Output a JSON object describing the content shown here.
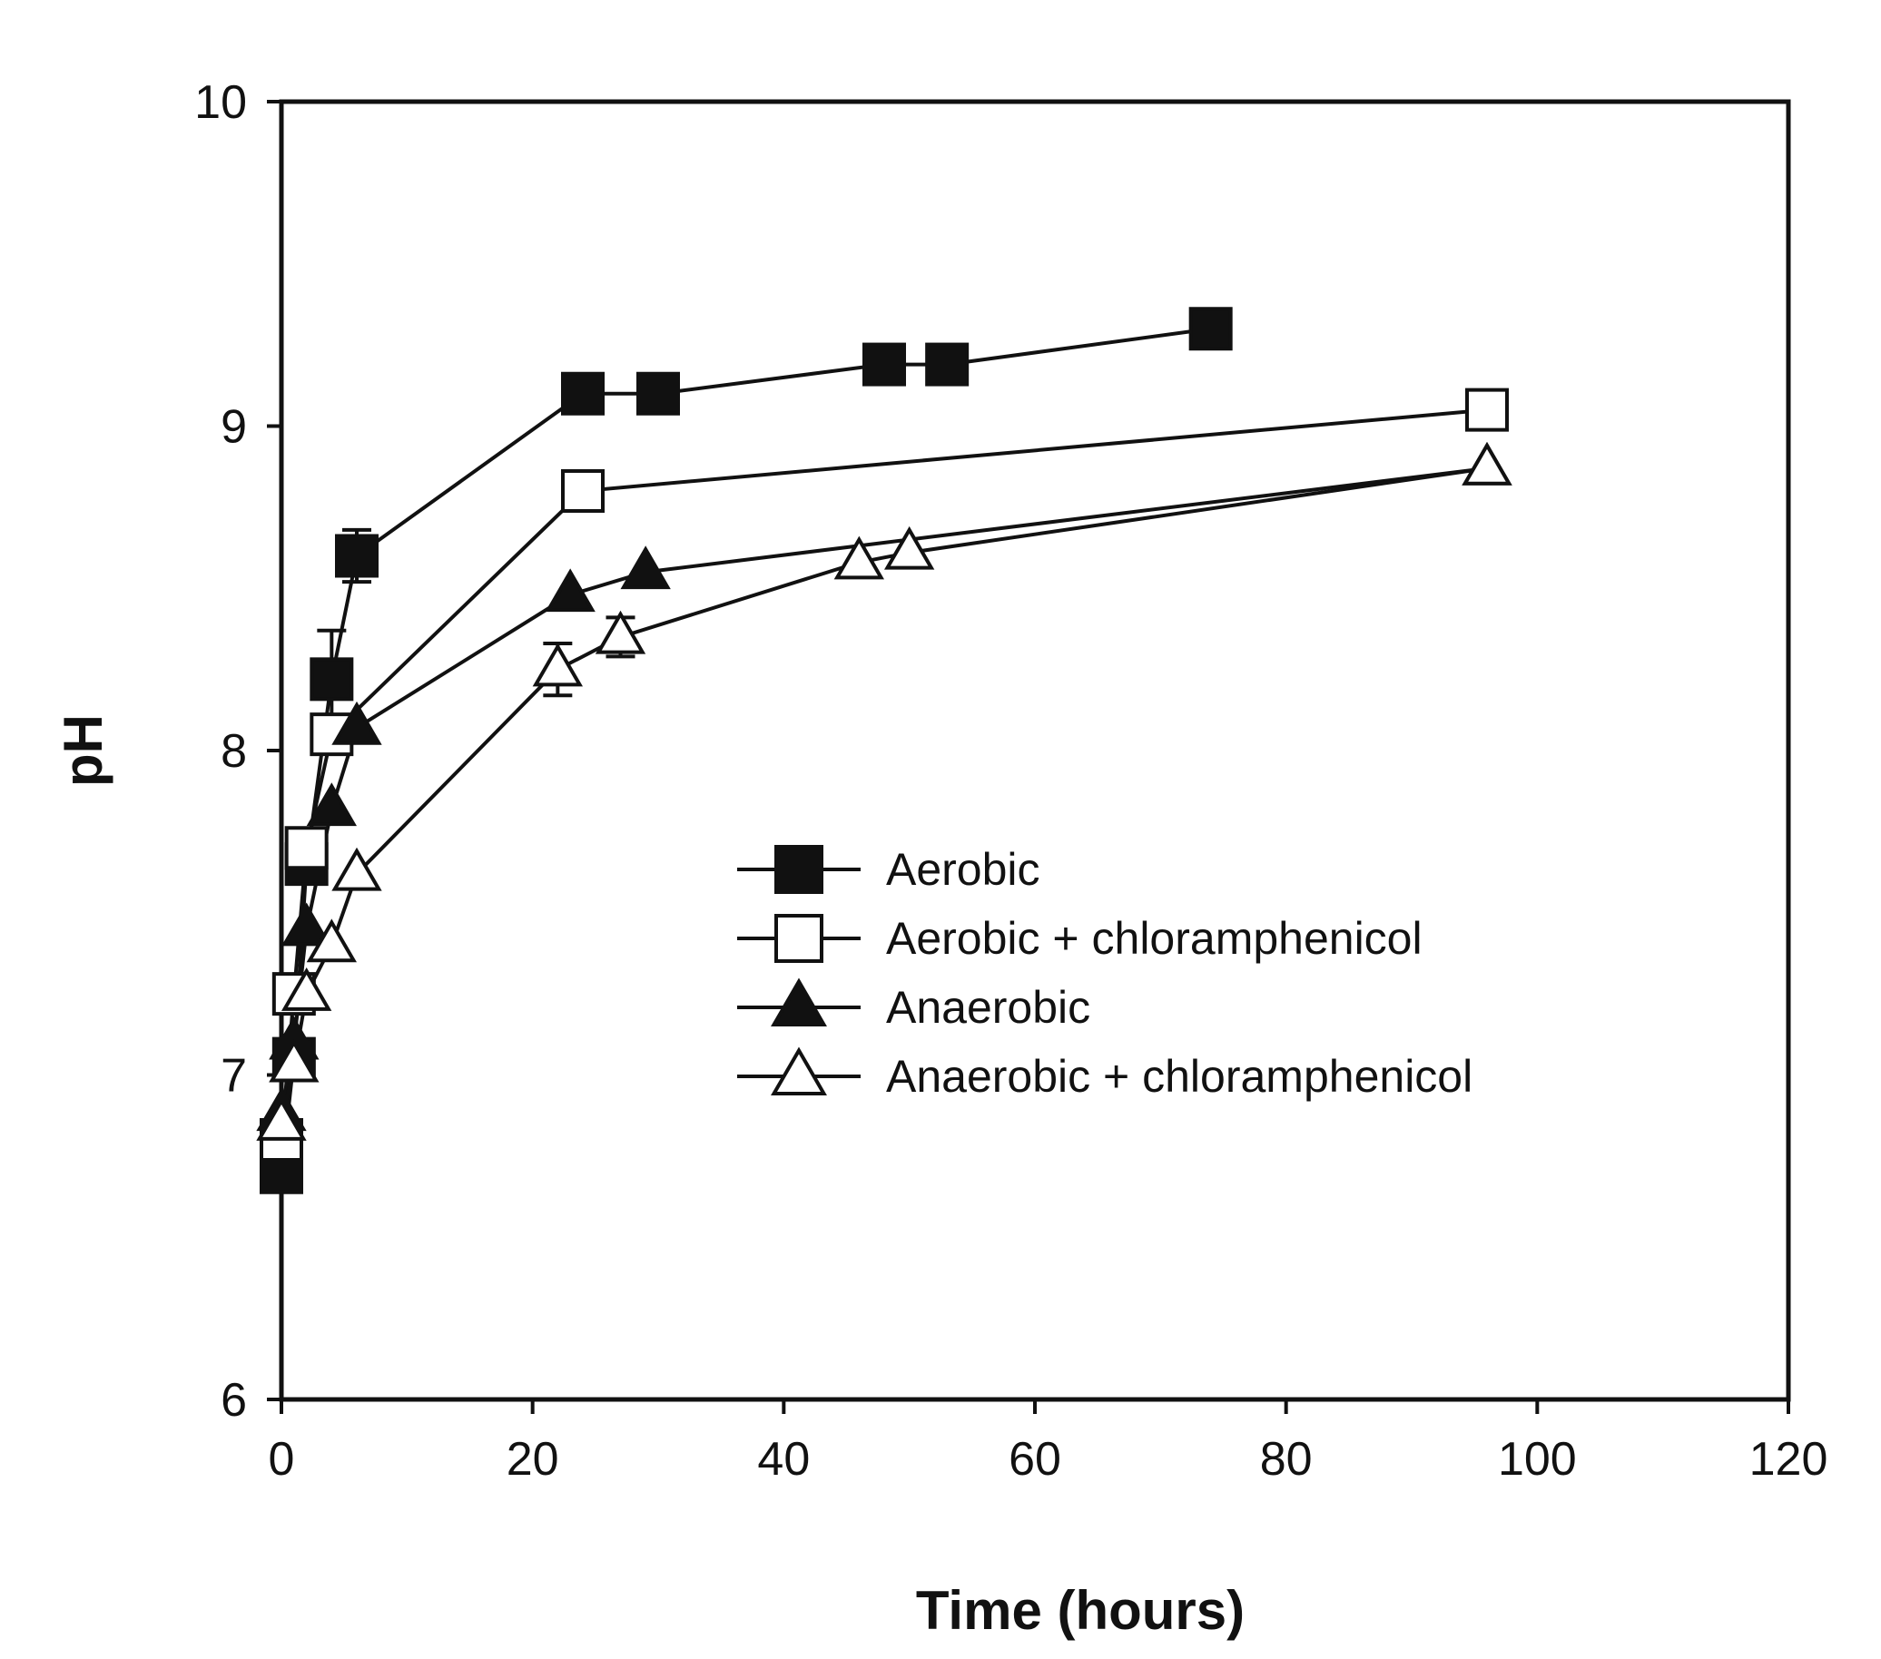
{
  "chart_data": {
    "type": "line",
    "title": "",
    "xlabel": "Time (hours)",
    "ylabel": "pH",
    "xlim": [
      0,
      120
    ],
    "ylim": [
      6,
      10
    ],
    "xticks": [
      0,
      20,
      40,
      60,
      80,
      100,
      120
    ],
    "yticks": [
      6,
      7,
      8,
      9,
      10
    ],
    "grid": false,
    "legend_position": "center-right",
    "series": [
      {
        "name": "Aerobic",
        "marker": "square",
        "filled": true,
        "color": "#111111",
        "x": [
          0,
          1,
          2,
          4,
          6,
          24,
          30,
          48,
          53,
          74
        ],
        "y": [
          6.7,
          7.05,
          7.65,
          8.22,
          8.6,
          9.1,
          9.1,
          9.19,
          9.19,
          9.3
        ],
        "err": [
          0,
          0,
          0,
          0.15,
          0.08,
          0,
          0,
          0,
          0,
          0
        ]
      },
      {
        "name": "Aerobic + chloramphenicol",
        "marker": "square",
        "filled": false,
        "color": "#111111",
        "x": [
          0,
          1,
          2,
          4,
          24,
          96
        ],
        "y": [
          6.8,
          7.25,
          7.7,
          8.05,
          8.8,
          9.05
        ],
        "err": [
          0,
          0,
          0,
          0,
          0,
          0
        ]
      },
      {
        "name": "Anaerobic",
        "marker": "triangle",
        "filled": true,
        "color": "#111111",
        "x": [
          0,
          1,
          2,
          4,
          6,
          23,
          29,
          96
        ],
        "y": [
          6.88,
          7.1,
          7.45,
          7.82,
          8.07,
          8.48,
          8.55,
          8.87
        ],
        "err": [
          0,
          0,
          0,
          0,
          0,
          0,
          0,
          0
        ]
      },
      {
        "name": "Anaerobic + chloramphenicol",
        "marker": "triangle",
        "filled": false,
        "color": "#111111",
        "x": [
          0,
          1,
          2,
          4,
          6,
          22,
          27,
          46,
          50,
          96
        ],
        "y": [
          6.85,
          7.03,
          7.25,
          7.4,
          7.62,
          8.25,
          8.35,
          8.58,
          8.61,
          8.87
        ],
        "err": [
          0,
          0,
          0,
          0,
          0,
          0.08,
          0.06,
          0,
          0,
          0
        ]
      }
    ]
  }
}
